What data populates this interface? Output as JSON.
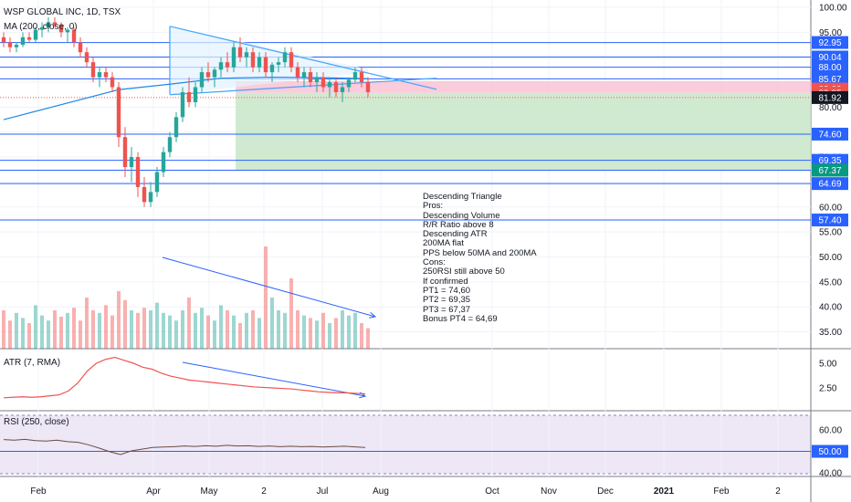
{
  "header": {
    "symbol_line": "WSP GLOBAL INC, 1D, TSX",
    "ma_line": "MA (200, close, 0)",
    "atr_line": "ATR (7, RMA)",
    "rsi_line": "RSI (250, close)"
  },
  "colors": {
    "up": "#26a69a",
    "down": "#ef5350",
    "level_line": "#2962ff",
    "trend_line": "#42a5f5",
    "ma_line": "#1e88e5",
    "atr_line": "#ef5350",
    "rsi_line": "#7e57c2",
    "rsi_band": "#ede7f6",
    "stop_zone": "#f8bbd0",
    "target_zone": "#c8e6c9",
    "triangle_fill": "#e3f2fd"
  },
  "chart_data": [
    {
      "type": "candlestick",
      "pane": "price",
      "title": "WSP GLOBAL INC, 1D, TSX",
      "y_ticks": [
        "100.00",
        "95.00",
        "90.00",
        "85.00",
        "80.00",
        "75.00",
        "70.00",
        "65.00",
        "60.00",
        "55.00",
        "50.00",
        "45.00",
        "40.00",
        "35.00"
      ],
      "x_ticks": [
        "Feb",
        "Apr",
        "May",
        "2",
        "Jul",
        "Aug",
        "Oct",
        "Nov",
        "Dec",
        "2021",
        "Feb",
        "2"
      ],
      "levels": [
        {
          "label": "92.95",
          "value": 92.95,
          "kind": "resistance"
        },
        {
          "label": "90.04",
          "value": 90.04,
          "kind": "resistance"
        },
        {
          "label": "88.00",
          "value": 88.0,
          "kind": "resistance"
        },
        {
          "label": "85.67",
          "value": 85.67,
          "kind": "resistance"
        },
        {
          "label": "83.62",
          "value": 83.62,
          "kind": "stop"
        },
        {
          "label": "82.85",
          "value": 82.85,
          "kind": "stop"
        },
        {
          "label": "81.92",
          "value": 81.92,
          "kind": "last"
        },
        {
          "label": "74.60",
          "value": 74.6,
          "kind": "target"
        },
        {
          "label": "69.35",
          "value": 69.35,
          "kind": "target"
        },
        {
          "label": "67.37",
          "value": 67.37,
          "kind": "target"
        },
        {
          "label": "64.69",
          "value": 64.69,
          "kind": "target"
        },
        {
          "label": "57.40",
          "value": 57.4,
          "kind": "support"
        }
      ],
      "zones": {
        "stop": {
          "from": 82.85,
          "to": 85.2
        },
        "target": {
          "from": 67.37,
          "to": 82.85
        }
      },
      "candles": [
        [
          94,
          95,
          92,
          93
        ],
        [
          93,
          94,
          91,
          92
        ],
        [
          92,
          93,
          91,
          92.5
        ],
        [
          92.5,
          95,
          92,
          94
        ],
        [
          94,
          95,
          93,
          93.5
        ],
        [
          93.5,
          96,
          93,
          95.5
        ],
        [
          95.5,
          97,
          94,
          96
        ],
        [
          96,
          98,
          95,
          97
        ],
        [
          97,
          98,
          96,
          96.5
        ],
        [
          96.5,
          97,
          94,
          95
        ],
        [
          95,
          96,
          93,
          95.5
        ],
        [
          95.5,
          96,
          92,
          93
        ],
        [
          93,
          94,
          90,
          91
        ],
        [
          91,
          92,
          88,
          89
        ],
        [
          89,
          90,
          85,
          86
        ],
        [
          86,
          88,
          84,
          87
        ],
        [
          87,
          88,
          85,
          86
        ],
        [
          86,
          87,
          83,
          84
        ],
        [
          84,
          85,
          72,
          74
        ],
        [
          74,
          76,
          66,
          68
        ],
        [
          68,
          72,
          65,
          70
        ],
        [
          70,
          71,
          62,
          64
        ],
        [
          64,
          66,
          60,
          61
        ],
        [
          61,
          65,
          60,
          63
        ],
        [
          63,
          68,
          62,
          67
        ],
        [
          67,
          72,
          66,
          71
        ],
        [
          71,
          75,
          70,
          74
        ],
        [
          74,
          79,
          73,
          78
        ],
        [
          78,
          84,
          77,
          83
        ],
        [
          83,
          86,
          80,
          81
        ],
        [
          81,
          85,
          80,
          84
        ],
        [
          84,
          88,
          83,
          87
        ],
        [
          87,
          89,
          85,
          86
        ],
        [
          86,
          88,
          84,
          87.5
        ],
        [
          87.5,
          90,
          86,
          89
        ],
        [
          89,
          91,
          87,
          88
        ],
        [
          88,
          93,
          87,
          92
        ],
        [
          92,
          94,
          89,
          90
        ],
        [
          90,
          92,
          88,
          91
        ],
        [
          91,
          92,
          87,
          88
        ],
        [
          88,
          91,
          87,
          90
        ],
        [
          90,
          91,
          86,
          87
        ],
        [
          87,
          89,
          85,
          88.5
        ],
        [
          88.5,
          90,
          87,
          89
        ],
        [
          89,
          92,
          88,
          91
        ],
        [
          91,
          92,
          87,
          88
        ],
        [
          88,
          89,
          85,
          86
        ],
        [
          86,
          88,
          84,
          87
        ],
        [
          87,
          88,
          84,
          85
        ],
        [
          85,
          87,
          83,
          86
        ],
        [
          86,
          87,
          83,
          84
        ],
        [
          84,
          86,
          82,
          85
        ],
        [
          85,
          86,
          82,
          83
        ],
        [
          83,
          85,
          81,
          84
        ],
        [
          84,
          86,
          83,
          85.5
        ],
        [
          85.5,
          88,
          85,
          87
        ],
        [
          87,
          88,
          84,
          85
        ],
        [
          85,
          86,
          82,
          83
        ]
      ],
      "moving_average": [
        [
          0,
          77.5
        ],
        [
          18,
          83.5
        ],
        [
          26,
          84.6
        ],
        [
          34,
          85.8
        ],
        [
          42,
          86.0
        ],
        [
          50,
          85.9
        ],
        [
          57,
          85.7
        ]
      ],
      "trendlines": [
        {
          "from": [
            26,
            96.2
          ],
          "to": [
            57,
            87.6
          ],
          "label": ""
        },
        {
          "from": [
            26,
            96.2
          ],
          "to": [
            26,
            82.5
          ],
          "label": ""
        },
        {
          "from": [
            26,
            82.5
          ],
          "to": [
            57,
            87.0
          ],
          "label": ""
        }
      ],
      "volume": [
        0.3,
        0.22,
        0.28,
        0.24,
        0.2,
        0.34,
        0.26,
        0.22,
        0.3,
        0.25,
        0.28,
        0.32,
        0.22,
        0.4,
        0.3,
        0.28,
        0.34,
        0.26,
        0.45,
        0.38,
        0.3,
        0.28,
        0.32,
        0.3,
        0.36,
        0.28,
        0.26,
        0.22,
        0.3,
        0.4,
        0.28,
        0.32,
        0.26,
        0.22,
        0.34,
        0.3,
        0.26,
        0.2,
        0.28,
        0.3,
        0.24,
        0.8,
        0.4,
        0.3,
        0.28,
        0.55,
        0.3,
        0.26,
        0.24,
        0.22,
        0.28,
        0.2,
        0.24,
        0.3,
        0.26,
        0.28,
        0.2,
        0.16
      ]
    },
    {
      "type": "line",
      "pane": "atr",
      "title": "ATR (7, RMA)",
      "y_ticks": [
        "5.00",
        "2.50"
      ],
      "y": [
        1.5,
        1.55,
        1.6,
        1.55,
        1.6,
        1.7,
        1.8,
        2.2,
        3.0,
        4.2,
        5.0,
        5.4,
        5.6,
        5.3,
        5.0,
        4.6,
        4.4,
        4.0,
        3.7,
        3.5,
        3.3,
        3.2,
        3.1,
        3.0,
        2.9,
        2.8,
        2.7,
        2.6,
        2.55,
        2.5,
        2.45,
        2.4,
        2.3,
        2.2,
        2.1,
        2.05,
        2.0,
        2.0,
        1.95,
        1.9
      ]
    },
    {
      "type": "line",
      "pane": "rsi",
      "title": "RSI (250, close)",
      "y_ticks": [
        "60.00",
        "50.00",
        "40.00"
      ],
      "levels": [
        {
          "label": "50.00",
          "value": 50.0
        }
      ],
      "y": [
        55.5,
        55.2,
        55.6,
        55.0,
        54.8,
        55.2,
        54.5,
        54.2,
        53.0,
        51.5,
        49.8,
        48.5,
        50.2,
        51.0,
        51.8,
        52.0,
        52.2,
        52.5,
        52.3,
        52.6,
        52.4,
        52.8,
        52.5,
        52.6,
        52.3,
        52.5,
        52.2,
        52.4,
        52.2,
        52.3,
        52.0,
        52.2,
        52.4,
        52.1,
        51.8
      ]
    }
  ],
  "annotation_lines": [
    "Descending Triangle",
    "Pros:",
    "Descending Volume",
    "R/R Ratio above 8",
    "Descending ATR",
    "200MA flat",
    "PPS below 50MA and 200MA",
    "Cons:",
    "250RSI still above 50",
    "If confirmed",
    "PT1 = 74,60",
    "PT2 = 69,35",
    "PT3 = 67,37",
    "Bonus PT4 = 64,69"
  ]
}
